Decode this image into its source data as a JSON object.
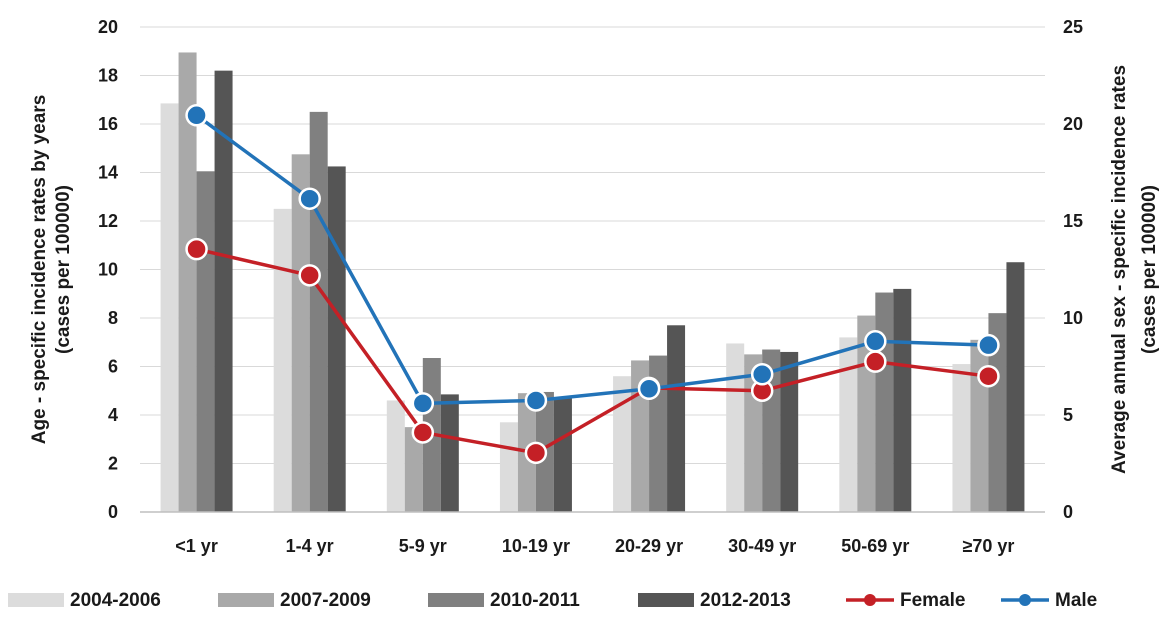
{
  "chart_data": {
    "type": "bar",
    "categories": [
      "<1 yr",
      "1-4 yr",
      "5-9 yr",
      "10-19 yr",
      "20-29 yr",
      "30-49 yr",
      "50-69 yr",
      "≥70 yr"
    ],
    "series": [
      {
        "name": "2004-2006",
        "kind": "bar",
        "axis": "left",
        "color": "#dcdcdc",
        "values": [
          16.85,
          12.5,
          4.6,
          3.7,
          5.6,
          6.95,
          7.2,
          6.1
        ]
      },
      {
        "name": "2007-2009",
        "kind": "bar",
        "axis": "left",
        "color": "#a9a9a9",
        "values": [
          18.95,
          14.75,
          3.5,
          4.9,
          6.25,
          6.5,
          8.1,
          7.1
        ]
      },
      {
        "name": "2010-2011",
        "kind": "bar",
        "axis": "left",
        "color": "#808080",
        "values": [
          14.05,
          16.5,
          6.35,
          4.95,
          6.45,
          6.7,
          9.05,
          8.2
        ]
      },
      {
        "name": "2012-2013",
        "kind": "bar",
        "axis": "left",
        "color": "#555555",
        "values": [
          18.2,
          14.25,
          4.85,
          4.7,
          7.7,
          6.6,
          9.2,
          10.3
        ]
      },
      {
        "name": "Female",
        "kind": "line",
        "axis": "right",
        "color": "#c42026",
        "values": [
          13.55,
          12.2,
          4.1,
          3.05,
          6.4,
          6.25,
          7.75,
          7.0
        ]
      },
      {
        "name": "Male",
        "kind": "line",
        "axis": "right",
        "color": "#2273b8",
        "values": [
          20.45,
          16.15,
          5.6,
          5.75,
          6.35,
          7.1,
          8.8,
          8.6
        ]
      }
    ],
    "ylabel": "Age - specific incidence rates by years (cases per 100000)",
    "ylabel_lines": [
      "Age - specific incidence rates by years",
      "(cases per 100000)"
    ],
    "y2label": "Average annual sex - specific incidence rates (cases per 100000)",
    "y2label_lines": [
      "Average annual sex - specific incidence rates",
      "(cases per 100000)"
    ],
    "ylim": [
      0,
      20
    ],
    "yticks": [
      0,
      2,
      4,
      6,
      8,
      10,
      12,
      14,
      16,
      18,
      20
    ],
    "y2lim": [
      0,
      25
    ],
    "y2ticks": [
      0,
      5,
      10,
      15,
      20,
      25
    ],
    "grid": true,
    "legend": "bottom"
  }
}
